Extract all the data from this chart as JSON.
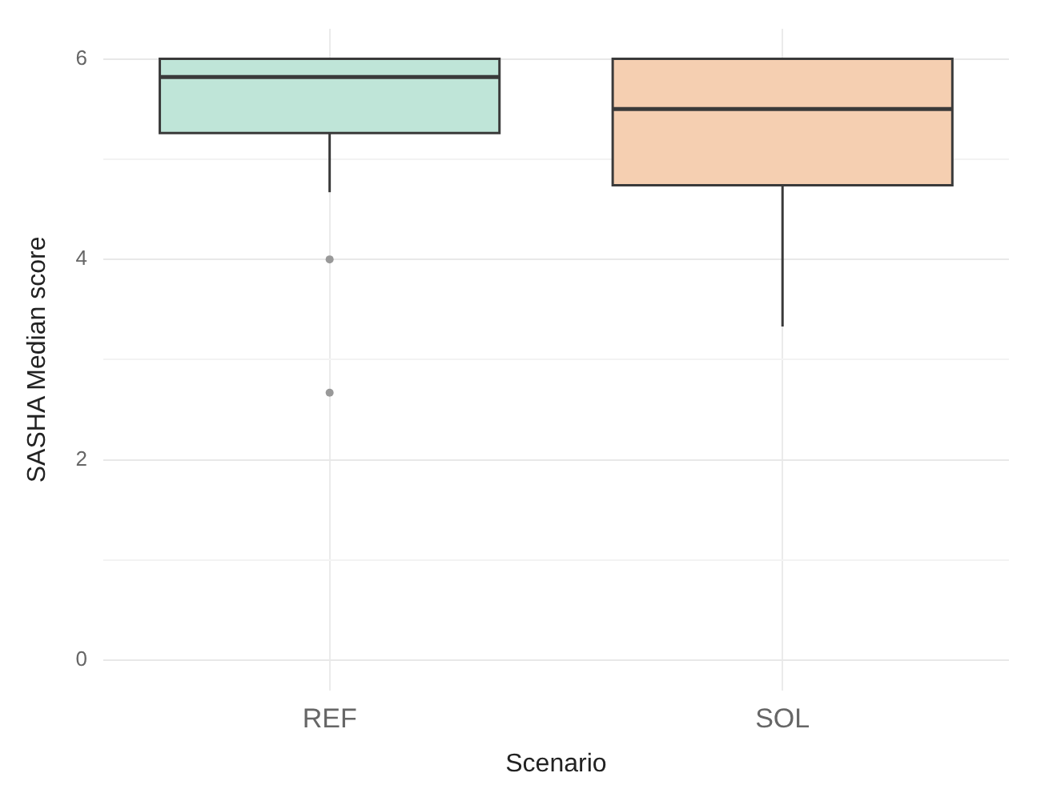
{
  "chart_data": {
    "type": "box",
    "xlabel": "Scenario",
    "ylabel": "SASHA Median score",
    "categories": [
      "REF",
      "SOL"
    ],
    "boxes": [
      {
        "low": 4.67,
        "q1": 5.26,
        "median": 5.82,
        "q3": 6,
        "high": 6,
        "outliers": [
          4,
          2.67
        ]
      },
      {
        "low": 3.33,
        "q1": 4.74,
        "median": 5.5,
        "q3": 6,
        "high": 6
      }
    ],
    "colors": [
      "#bfe5d8",
      "#f5cfb1"
    ],
    "ylim": [
      -0.3,
      6.3
    ],
    "yticks": [
      0,
      {
        "value": 1,
        "label": null
      },
      2,
      {
        "value": 3,
        "label": null
      },
      4,
      {
        "value": 5,
        "label": null
      },
      6
    ],
    "grid": true,
    "legend": false
  }
}
